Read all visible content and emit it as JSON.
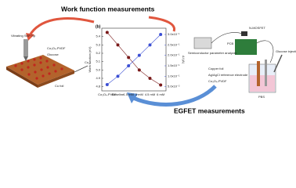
{
  "title_top": "Work function measurements",
  "title_bottom": "EGFET measurements",
  "left_labels": [
    "Vibrating SKP Tip",
    "Co₃O₄-PVDF",
    "Glucose",
    "Cu",
    "Cu foil"
  ],
  "right_labels": [
    "Semiconductor parameter analyzer",
    "N-MOSFET",
    "PCB",
    "Copper foil",
    "Ag/AgCl reference electrode",
    "Co₃O₄-PVDF",
    "PBS",
    "Glucose injection"
  ],
  "chart_data": {
    "type": "line",
    "panel": "(b)",
    "categories": [
      "Co₃O₄-PVDF",
      "Baseline",
      "1.5 mM",
      "3 mM",
      "4.5 mM",
      "6 mM"
    ],
    "ylabel": "Work function (eV)",
    "y2label": "ΔI (A)",
    "ylim": [
      4.75,
      5.5
    ],
    "yticks": [
      4.8,
      4.9,
      {
        "value": 5,
        "label": "5.0"
      },
      5.1,
      5.2,
      5.3,
      5.4
    ],
    "y2lim": [
      0.03,
      0.33
    ],
    "y2ticks": [
      {
        "value": 0.05,
        "label": "5.0x10⁻²"
      },
      {
        "value": 0.1,
        "label": "1.0x10⁻¹"
      },
      {
        "value": 0.15,
        "label": "1.5x10⁻¹"
      },
      {
        "value": 0.2,
        "label": "2.0x10⁻¹"
      },
      {
        "value": 0.25,
        "label": "2.5x10⁻¹"
      },
      {
        "value": 0.3,
        "label": "3.0x10⁻¹"
      }
    ],
    "series": [
      {
        "name": "Work function",
        "color": "#7a1a1a",
        "values": [
          5.45,
          5.3,
          5.15,
          5.0,
          4.9,
          4.82
        ]
      },
      {
        "name": "ΔI",
        "color": "#3b4fd4",
        "axis": "y2",
        "values": [
          0.06,
          0.1,
          0.15,
          0.2,
          0.25,
          0.3
        ]
      }
    ]
  }
}
